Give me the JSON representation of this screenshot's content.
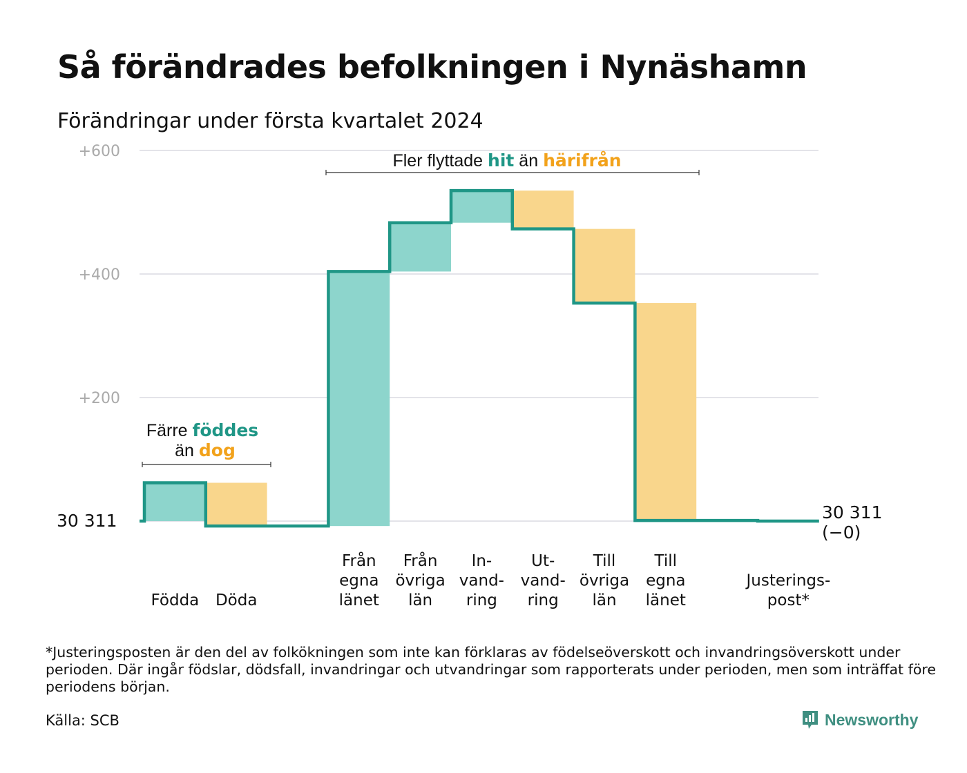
{
  "title": "Så förändrades befolkningen i Nynäshamn",
  "subtitle": "Förändringar under första kvartalet 2024",
  "colors": {
    "line": "#1f9686",
    "increase": "#8dd5cc",
    "decrease": "#f9d68c",
    "grid": "#e3e3e9",
    "accent_green": "#1f9686",
    "accent_orange": "#f2a21b",
    "brand": "#3f8f81"
  },
  "chart_data": {
    "type": "waterfall",
    "start_value": 30311,
    "start_label": "30  311",
    "end_label_line1": "30 311",
    "end_label_line2": "(−0)",
    "ylim": [
      -10,
      600
    ],
    "y_ticks": [
      {
        "value": 200,
        "label": "+200"
      },
      {
        "value": 400,
        "label": "+400"
      },
      {
        "value": 600,
        "label": "+600"
      }
    ],
    "steps": [
      {
        "key": "fodda",
        "label_lines": [
          "Födda"
        ],
        "delta": 62,
        "direction": "increase"
      },
      {
        "key": "doda",
        "label_lines": [
          "Döda"
        ],
        "delta": -70,
        "direction": "decrease"
      },
      {
        "key": "gap",
        "label_lines": [],
        "delta": 0,
        "direction": "none"
      },
      {
        "key": "fran_egna",
        "label_lines": [
          "Från",
          "egna",
          "länet"
        ],
        "delta": 412,
        "direction": "increase"
      },
      {
        "key": "fran_ovriga",
        "label_lines": [
          "Från",
          "övriga",
          "län"
        ],
        "delta": 79,
        "direction": "increase"
      },
      {
        "key": "invandring",
        "label_lines": [
          "In-",
          "vand-",
          "ring"
        ],
        "delta": 52,
        "direction": "increase"
      },
      {
        "key": "utvandring",
        "label_lines": [
          "Ut-",
          "vand-",
          "ring"
        ],
        "delta": -62,
        "direction": "decrease"
      },
      {
        "key": "till_ovriga",
        "label_lines": [
          "Till",
          "övriga",
          "län"
        ],
        "delta": -120,
        "direction": "decrease"
      },
      {
        "key": "till_egna",
        "label_lines": [
          "Till",
          "egna",
          "länet"
        ],
        "delta": -352,
        "direction": "decrease"
      },
      {
        "key": "gap2",
        "label_lines": [],
        "delta": 0,
        "direction": "none"
      },
      {
        "key": "justeringspost",
        "label_lines": [
          "Justerings-",
          "post*"
        ],
        "delta": -1,
        "direction": "decrease"
      }
    ],
    "annotations": [
      {
        "text_before": "Färre",
        "bold_text": "föddes",
        "bold_color": "#1f9686",
        "text_after_line2": "än",
        "bold_text2": "dog",
        "bold_color2": "#f2a21b"
      },
      {
        "text_before": "Fler flyttade",
        "bold_text": "hit",
        "bold_color": "#1f9686",
        "text_middle": "än",
        "bold_text2": "härifrån",
        "bold_color2": "#f2a21b"
      }
    ]
  },
  "footnote": "*Justeringsposten är den del av folkökningen som inte kan förklaras av födelseöverskott och invandringsöverskott under perioden. Där ingår födslar, dödsfall, invandringar och utvandringar som rapporterats under perioden, men som inträffat före periodens början.",
  "source": "Källa: SCB",
  "brand": {
    "name": "Newsworthy",
    "icon": "newsworthy-logo-icon"
  }
}
